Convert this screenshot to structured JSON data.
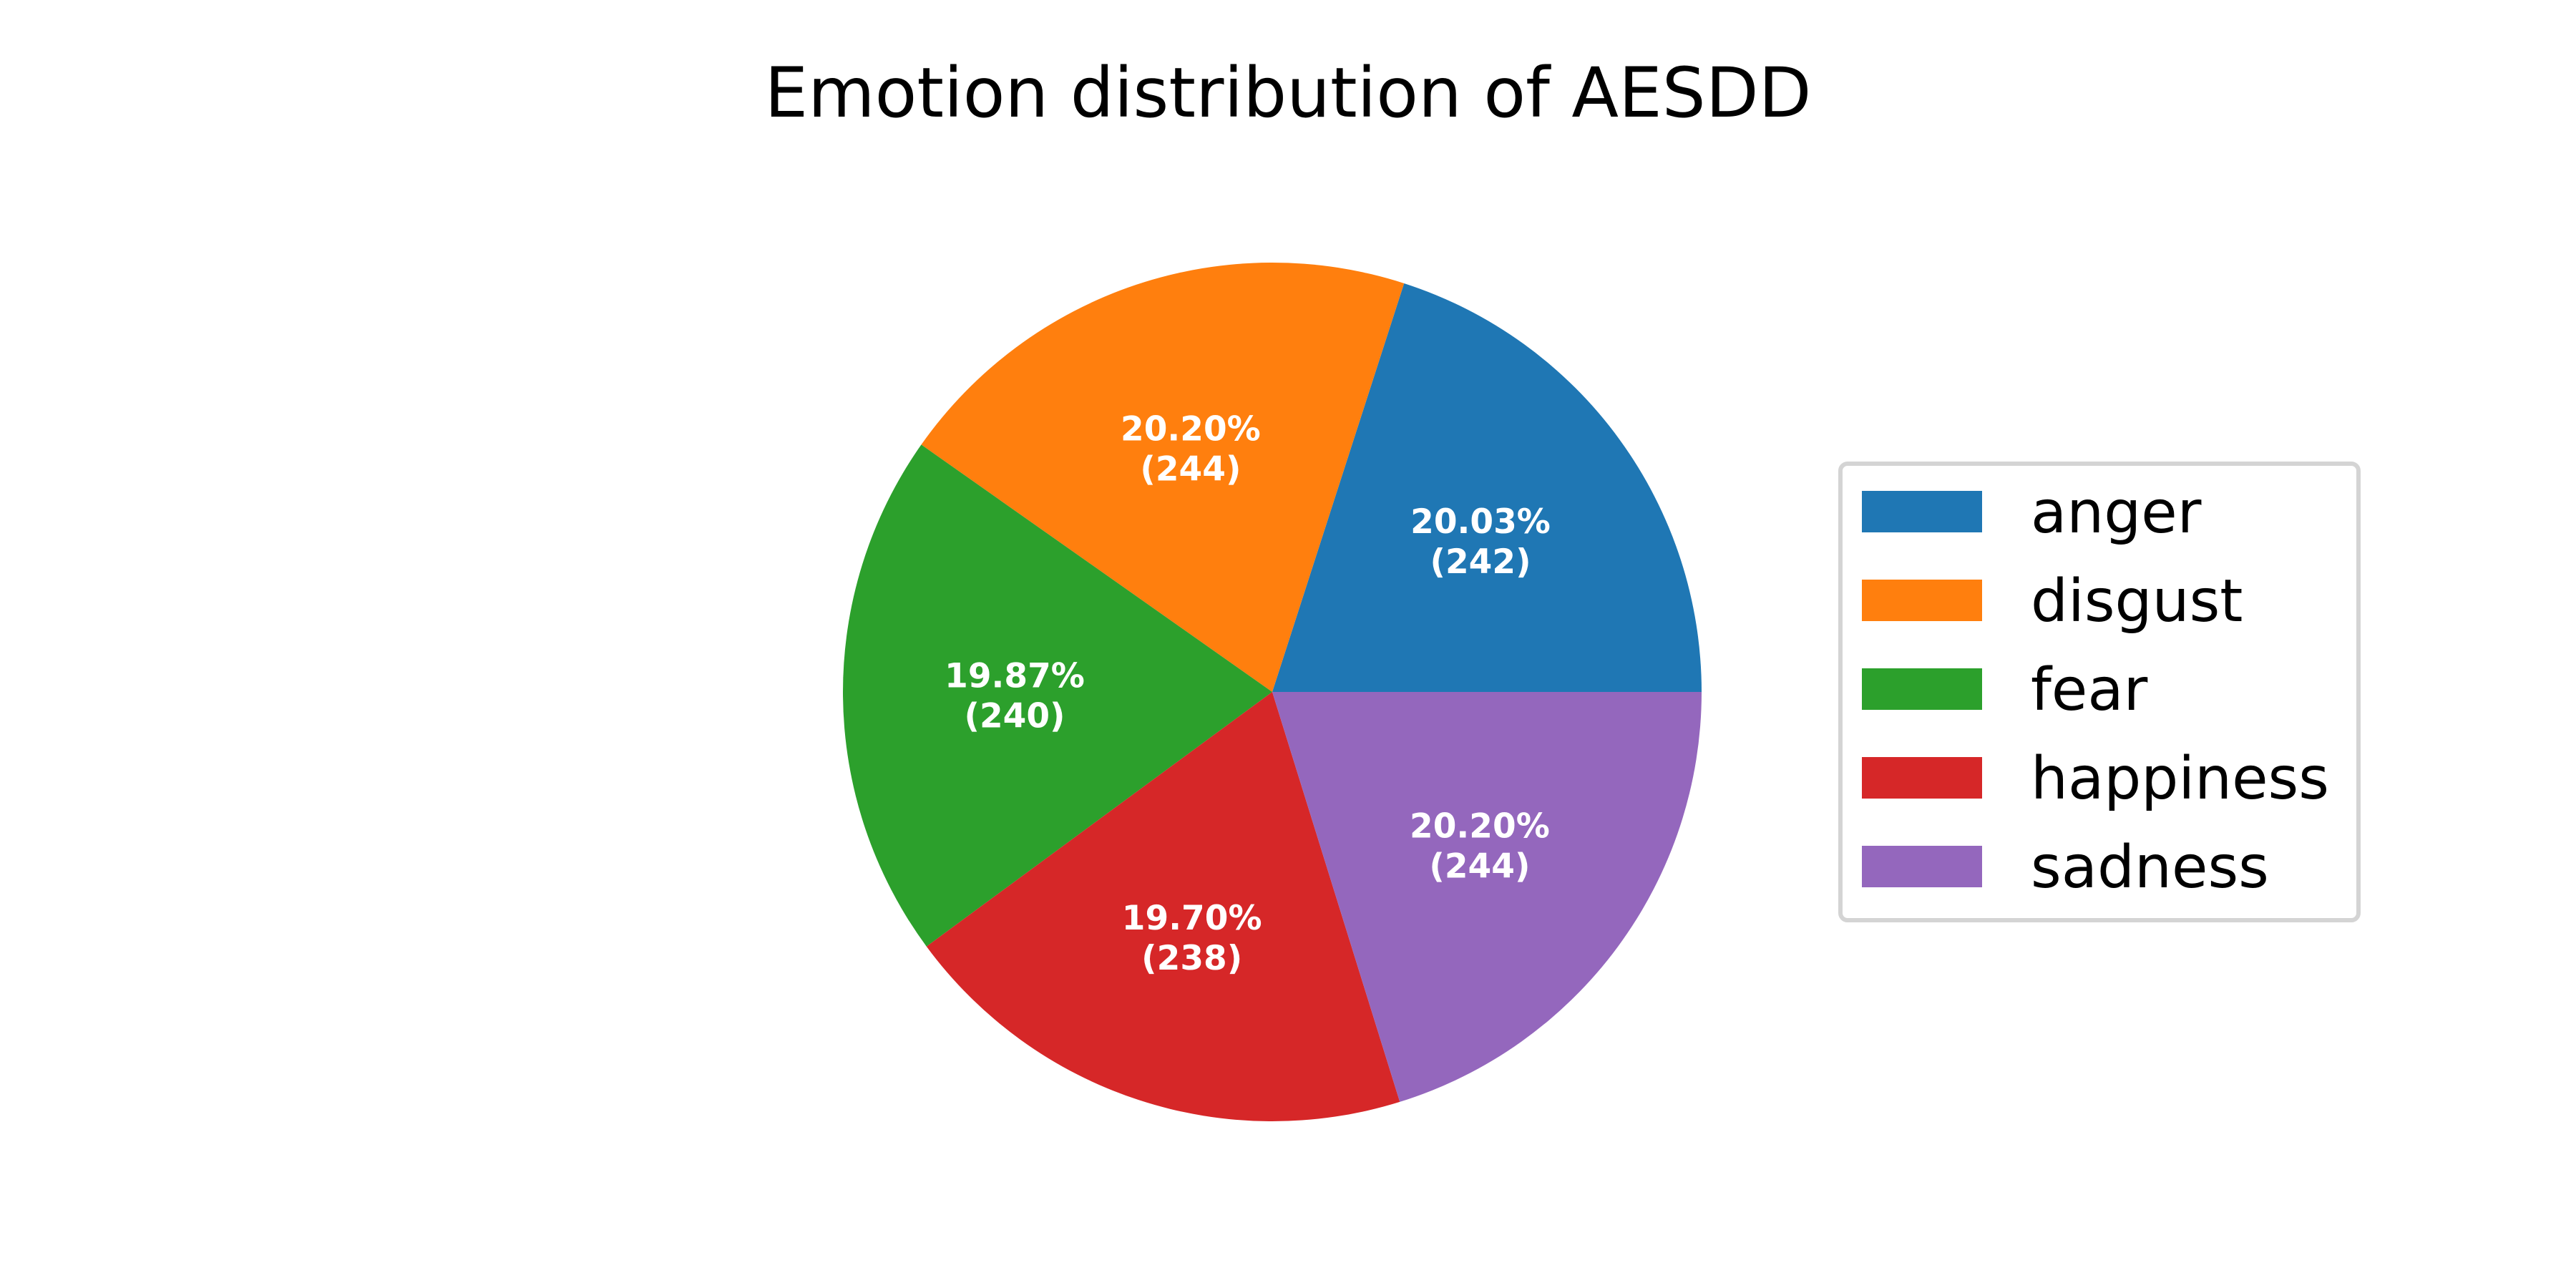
{
  "chart_data": {
    "type": "pie",
    "title": "Emotion distribution of AESDD",
    "slices": [
      {
        "label": "anger",
        "value": 242,
        "percent_label": "20.03%",
        "count_label": "(242)",
        "color": "#1f77b4"
      },
      {
        "label": "disgust",
        "value": 244,
        "percent_label": "20.20%",
        "count_label": "(244)",
        "color": "#ff7f0e"
      },
      {
        "label": "fear",
        "value": 240,
        "percent_label": "19.87%",
        "count_label": "(240)",
        "color": "#2ca02c"
      },
      {
        "label": "happiness",
        "value": 238,
        "percent_label": "19.70%",
        "count_label": "(238)",
        "color": "#d62728"
      },
      {
        "label": "sadness",
        "value": 244,
        "percent_label": "20.20%",
        "count_label": "(244)",
        "color": "#9467bd"
      }
    ],
    "start_angle_deg": 0,
    "direction": "counterclockwise",
    "legend_position": "right"
  }
}
